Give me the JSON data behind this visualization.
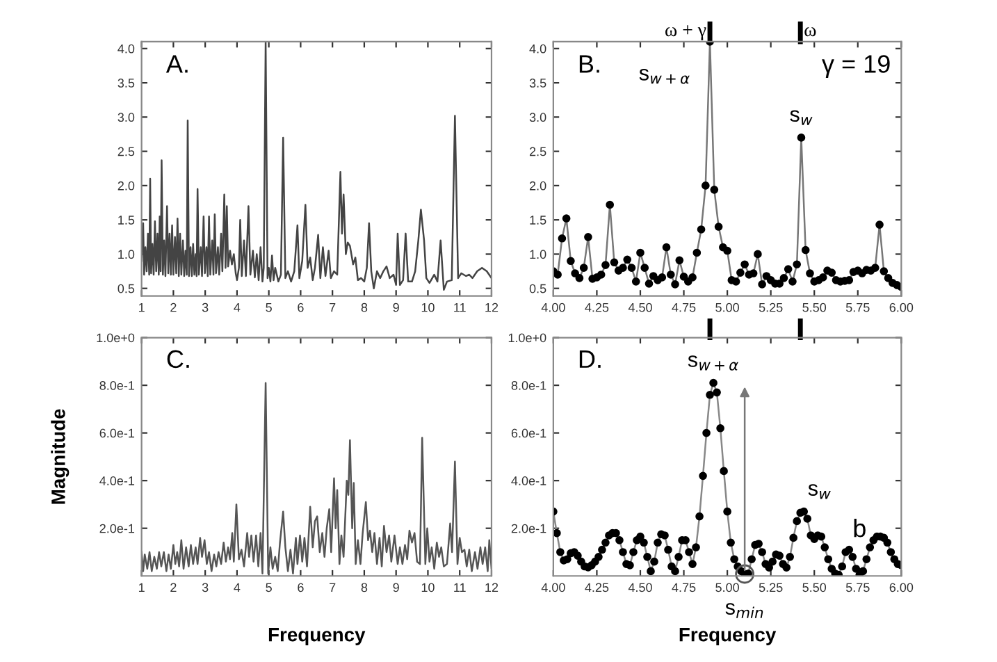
{
  "chart_data": [
    {
      "type": "line",
      "xlim": [
        1,
        12
      ],
      "ylim": [
        0.39,
        4.1
      ],
      "xticks": [
        1,
        2,
        3,
        4,
        5,
        6,
        7,
        8,
        9,
        10,
        11,
        12
      ],
      "yticks": [
        {
          "value": 0.5,
          "label": "0.5"
        },
        {
          "value": 1,
          "label": "1.0"
        },
        {
          "value": 1.5,
          "label": "1.5"
        },
        {
          "value": 2,
          "label": "2.0"
        },
        {
          "value": 2.5,
          "label": "2.5"
        },
        {
          "value": 3,
          "label": "3.0"
        },
        {
          "value": 3.5,
          "label": "3.5"
        },
        {
          "value": 4,
          "label": "4.0"
        }
      ],
      "annotations": [
        "A."
      ],
      "grid": false,
      "legend": false,
      "series": [
        {
          "color": "#444444",
          "x": [
            1.0,
            1.05,
            1.08,
            1.12,
            1.16,
            1.2,
            1.24,
            1.27,
            1.3,
            1.34,
            1.38,
            1.42,
            1.46,
            1.5,
            1.54,
            1.57,
            1.6,
            1.63,
            1.67,
            1.71,
            1.75,
            1.8,
            1.84,
            1.88,
            1.92,
            1.96,
            2.0,
            2.05,
            2.09,
            2.13,
            2.17,
            2.21,
            2.25,
            2.3,
            2.34,
            2.38,
            2.42,
            2.45,
            2.49,
            2.54,
            2.58,
            2.62,
            2.66,
            2.7,
            2.73,
            2.76,
            2.8,
            2.86,
            2.9,
            2.95,
            2.99,
            3.04,
            3.08,
            3.12,
            3.16,
            3.22,
            3.26,
            3.3,
            3.34,
            3.4,
            3.44,
            3.5,
            3.54,
            3.6,
            3.64,
            3.68,
            3.72,
            3.78,
            3.84,
            3.9,
            3.96,
            4.0,
            4.06,
            4.1,
            4.15,
            4.22,
            4.28,
            4.36,
            4.42,
            4.5,
            4.56,
            4.62,
            4.68,
            4.74,
            4.8,
            4.84,
            4.9,
            4.96,
            5.0,
            5.05,
            5.1,
            5.15,
            5.2,
            5.3,
            5.38,
            5.45,
            5.52,
            5.6,
            5.7,
            5.8,
            5.9,
            5.96,
            6.05,
            6.15,
            6.22,
            6.3,
            6.38,
            6.45,
            6.55,
            6.62,
            6.7,
            6.78,
            6.88,
            6.95,
            7.05,
            7.15,
            7.25,
            7.3,
            7.35,
            7.42,
            7.48,
            7.55,
            7.65,
            7.72,
            7.8,
            7.9,
            8.0,
            8.08,
            8.15,
            8.22,
            8.3,
            8.4,
            8.5,
            8.6,
            8.7,
            8.8,
            8.92,
            9.0,
            9.05,
            9.12,
            9.22,
            9.3,
            9.38,
            9.5,
            9.6,
            9.7,
            9.78,
            9.88,
            9.95,
            10.05,
            10.2,
            10.3,
            10.4,
            10.5,
            10.6,
            10.75,
            10.85,
            10.95,
            11.05,
            11.2,
            11.3,
            11.4,
            11.55,
            11.7,
            11.85,
            12.0
          ],
          "values": [
            0.9,
            1.45,
            0.7,
            1.1,
            0.75,
            1.3,
            0.7,
            2.1,
            0.72,
            1.15,
            0.7,
            1.48,
            0.75,
            1.3,
            0.7,
            1.55,
            0.75,
            2.37,
            0.7,
            1.2,
            0.68,
            1.7,
            0.72,
            1.3,
            0.7,
            1.42,
            0.7,
            1.25,
            0.72,
            1.52,
            0.68,
            1.3,
            0.7,
            1.2,
            0.68,
            1.05,
            0.7,
            2.95,
            0.68,
            1.1,
            0.68,
            1.15,
            0.7,
            1.0,
            0.68,
            1.95,
            0.7,
            1.1,
            0.68,
            1.55,
            0.72,
            1.1,
            0.68,
            1.55,
            0.7,
            1.2,
            0.7,
            1.58,
            0.72,
            1.1,
            0.7,
            1.3,
            0.75,
            1.87,
            0.8,
            1.7,
            0.82,
            1.05,
            0.85,
            1.0,
            0.72,
            0.62,
            0.8,
            1.5,
            0.68,
            1.2,
            0.68,
            1.7,
            0.7,
            1.05,
            0.66,
            1.0,
            0.62,
            1.1,
            0.6,
            0.8,
            4.1,
            0.65,
            0.8,
            0.6,
            0.98,
            0.62,
            0.8,
            0.6,
            0.7,
            2.7,
            0.65,
            0.75,
            0.6,
            0.75,
            1.42,
            0.65,
            0.9,
            1.72,
            0.8,
            0.95,
            0.62,
            0.8,
            1.28,
            0.65,
            1.1,
            0.68,
            1.05,
            0.65,
            0.75,
            0.7,
            2.2,
            1.3,
            1.87,
            1.0,
            1.17,
            1.12,
            0.85,
            0.95,
            0.62,
            0.65,
            0.6,
            0.8,
            1.45,
            0.75,
            0.5,
            0.75,
            0.65,
            0.75,
            0.82,
            0.65,
            0.7,
            0.55,
            1.3,
            0.55,
            0.62,
            1.3,
            0.6,
            0.6,
            0.75,
            1.2,
            1.65,
            1.2,
            0.65,
            0.58,
            0.7,
            0.6,
            1.2,
            0.48,
            0.6,
            0.62,
            3.02,
            0.65,
            0.72,
            0.68,
            0.7,
            0.65,
            0.75,
            0.8,
            0.75,
            0.65
          ]
        }
      ]
    },
    {
      "type": "line",
      "xlim": [
        4,
        6
      ],
      "ylim": [
        0.39,
        4.1
      ],
      "marker": "circle",
      "xticks": [
        {
          "value": 4,
          "label": "4.00"
        },
        {
          "value": 4.25,
          "label": "4.25"
        },
        {
          "value": 4.5,
          "label": "4.50"
        },
        {
          "value": 4.75,
          "label": "4.75"
        },
        {
          "value": 5,
          "label": "5.00"
        },
        {
          "value": 5.25,
          "label": "5.25"
        },
        {
          "value": 5.5,
          "label": "5.50"
        },
        {
          "value": 5.75,
          "label": "5.75"
        },
        {
          "value": 6,
          "label": "6.00"
        }
      ],
      "yticks": [
        {
          "value": 0.5,
          "label": "0.5"
        },
        {
          "value": 1,
          "label": "1.0"
        },
        {
          "value": 1.5,
          "label": "1.5"
        },
        {
          "value": 2,
          "label": "2.0"
        },
        {
          "value": 2.5,
          "label": "2.5"
        },
        {
          "value": 3,
          "label": "3.0"
        },
        {
          "value": 3.5,
          "label": "3.5"
        },
        {
          "value": 4,
          "label": "4.0"
        }
      ],
      "annotations": [
        "B.",
        "γ = 19",
        {
          "text": "s$_{w+α}$",
          "x": 4.9,
          "y": 4.1
        },
        {
          "text": "s$_{w}$",
          "x": 5.425,
          "y": 2.7
        }
      ],
      "ref_lines": [
        {
          "axis": "x",
          "value": 4.9,
          "label": "ω + γ"
        },
        {
          "axis": "x",
          "value": 5.42,
          "label": "ω"
        }
      ],
      "grid": false,
      "legend": false,
      "series": [
        {
          "color": "#777777",
          "x": [
            4.0,
            4.025,
            4.05,
            4.075,
            4.1,
            4.125,
            4.15,
            4.175,
            4.2,
            4.225,
            4.25,
            4.275,
            4.3,
            4.325,
            4.35,
            4.375,
            4.4,
            4.425,
            4.45,
            4.475,
            4.5,
            4.525,
            4.55,
            4.575,
            4.6,
            4.625,
            4.65,
            4.675,
            4.7,
            4.725,
            4.75,
            4.775,
            4.8,
            4.825,
            4.85,
            4.875,
            4.9,
            4.925,
            4.95,
            4.975,
            5.0,
            5.025,
            5.05,
            5.075,
            5.1,
            5.125,
            5.15,
            5.175,
            5.2,
            5.225,
            5.25,
            5.275,
            5.3,
            5.325,
            5.35,
            5.375,
            5.4,
            5.425,
            5.45,
            5.475,
            5.5,
            5.525,
            5.55,
            5.575,
            5.6,
            5.625,
            5.65,
            5.675,
            5.7,
            5.725,
            5.75,
            5.775,
            5.8,
            5.825,
            5.85,
            5.875,
            5.9,
            5.925,
            5.95,
            5.975,
            6.0
          ],
          "values": [
            0.75,
            0.7,
            1.23,
            1.52,
            0.9,
            0.72,
            0.65,
            0.8,
            1.25,
            0.64,
            0.66,
            0.7,
            0.84,
            1.72,
            0.88,
            0.76,
            0.8,
            0.92,
            0.8,
            0.6,
            1.02,
            0.8,
            0.57,
            0.68,
            0.62,
            0.66,
            1.1,
            0.7,
            0.56,
            0.91,
            0.67,
            0.6,
            0.66,
            1.02,
            1.36,
            2.0,
            4.1,
            1.94,
            1.4,
            1.1,
            1.05,
            0.62,
            0.6,
            0.73,
            0.85,
            0.7,
            0.72,
            1.0,
            0.56,
            0.68,
            0.62,
            0.57,
            0.57,
            0.65,
            0.78,
            0.6,
            0.85,
            2.7,
            1.06,
            0.72,
            0.6,
            0.62,
            0.66,
            0.76,
            0.73,
            0.62,
            0.6,
            0.61,
            0.62,
            0.74,
            0.76,
            0.72,
            0.77,
            0.76,
            0.8,
            1.43,
            0.75,
            0.65,
            0.58,
            0.55,
            0.52
          ]
        }
      ]
    },
    {
      "type": "line",
      "xlim": [
        1,
        12
      ],
      "ylim": [
        0,
        1
      ],
      "xticks": [
        1,
        2,
        3,
        4,
        5,
        6,
        7,
        8,
        9,
        10,
        11,
        12
      ],
      "yticks": [
        {
          "value": 0.2,
          "label": "2.0e-1"
        },
        {
          "value": 0.4,
          "label": "4.0e-1"
        },
        {
          "value": 0.6,
          "label": "6.0e-1"
        },
        {
          "value": 0.8,
          "label": "8.0e-1"
        },
        {
          "value": 1,
          "label": "1.0e+0"
        }
      ],
      "xlabel": "Frequency",
      "ylabel": "Magnitude",
      "annotations": [
        "C."
      ],
      "grid": false,
      "legend": false,
      "series": [
        {
          "color": "#555555",
          "x": [
            1.0,
            1.05,
            1.1,
            1.18,
            1.25,
            1.32,
            1.4,
            1.48,
            1.55,
            1.62,
            1.7,
            1.78,
            1.85,
            1.92,
            2.0,
            2.06,
            2.12,
            2.18,
            2.25,
            2.32,
            2.4,
            2.48,
            2.55,
            2.62,
            2.7,
            2.76,
            2.84,
            2.9,
            2.98,
            3.05,
            3.12,
            3.2,
            3.28,
            3.35,
            3.42,
            3.5,
            3.58,
            3.65,
            3.72,
            3.78,
            3.85,
            3.9,
            3.98,
            4.06,
            4.14,
            4.22,
            4.32,
            4.38,
            4.45,
            4.52,
            4.6,
            4.67,
            4.74,
            4.8,
            4.9,
            4.98,
            5.05,
            5.12,
            5.2,
            5.28,
            5.35,
            5.45,
            5.52,
            5.6,
            5.68,
            5.76,
            5.85,
            5.9,
            5.98,
            6.05,
            6.12,
            6.2,
            6.3,
            6.38,
            6.45,
            6.52,
            6.6,
            6.68,
            6.75,
            6.82,
            6.9,
            6.96,
            7.05,
            7.1,
            7.15,
            7.22,
            7.28,
            7.35,
            7.45,
            7.5,
            7.55,
            7.62,
            7.67,
            7.73,
            7.8,
            7.88,
            7.95,
            8.05,
            8.12,
            8.18,
            8.25,
            8.32,
            8.4,
            8.48,
            8.55,
            8.62,
            8.7,
            8.78,
            8.85,
            8.95,
            9.05,
            9.12,
            9.2,
            9.28,
            9.35,
            9.42,
            9.5,
            9.58,
            9.66,
            9.75,
            9.82,
            9.92,
            9.98,
            10.05,
            10.12,
            10.2,
            10.28,
            10.35,
            10.42,
            10.5,
            10.6,
            10.7,
            10.76,
            10.85,
            10.93,
            11.0,
            11.07,
            11.15,
            11.22,
            11.3,
            11.38,
            11.48,
            11.56,
            11.65,
            11.72,
            11.8,
            11.88,
            11.93,
            12.0
          ],
          "values": [
            0.1,
            0.02,
            0.09,
            0.03,
            0.1,
            0.02,
            0.08,
            0.03,
            0.1,
            0.04,
            0.1,
            0.02,
            0.09,
            0.03,
            0.13,
            0.05,
            0.1,
            0.04,
            0.15,
            0.03,
            0.12,
            0.04,
            0.13,
            0.05,
            0.12,
            0.05,
            0.16,
            0.08,
            0.15,
            0.05,
            0.1,
            0.02,
            0.09,
            0.04,
            0.1,
            0.05,
            0.14,
            0.06,
            0.12,
            0.07,
            0.18,
            0.06,
            0.3,
            0.07,
            0.11,
            0.04,
            0.18,
            0.08,
            0.17,
            0.06,
            0.17,
            0.04,
            0.18,
            0.01,
            0.81,
            0.01,
            0.12,
            0.03,
            0.08,
            0.02,
            0.14,
            0.27,
            0.12,
            0.02,
            0.11,
            0.01,
            0.16,
            0.05,
            0.17,
            0.06,
            0.16,
            0.04,
            0.29,
            0.12,
            0.23,
            0.25,
            0.1,
            0.18,
            0.08,
            0.2,
            0.28,
            0.1,
            0.41,
            0.2,
            0.36,
            0.05,
            0.17,
            0.08,
            0.4,
            0.34,
            0.57,
            0.2,
            0.39,
            0.05,
            0.15,
            0.05,
            0.18,
            0.31,
            0.15,
            0.19,
            0.1,
            0.18,
            0.05,
            0.16,
            0.04,
            0.21,
            0.1,
            0.17,
            0.06,
            0.17,
            0.05,
            0.12,
            0.05,
            0.13,
            0.07,
            0.19,
            0.14,
            0.18,
            0.06,
            0.05,
            0.58,
            0.05,
            0.2,
            0.06,
            0.12,
            0.03,
            0.14,
            0.08,
            0.12,
            0.04,
            0.05,
            0.22,
            0.1,
            0.48,
            0.05,
            0.16,
            0.1,
            0.11,
            0.04,
            0.11,
            0.02,
            0.1,
            0.03,
            0.12,
            0.05,
            0.12,
            0.02,
            0.15,
            0.03
          ]
        }
      ]
    },
    {
      "type": "line",
      "xlim": [
        4,
        6
      ],
      "ylim": [
        0,
        1
      ],
      "marker": "circle",
      "xticks": [
        {
          "value": 4,
          "label": "4.00"
        },
        {
          "value": 4.25,
          "label": "4.25"
        },
        {
          "value": 4.5,
          "label": "4.50"
        },
        {
          "value": 4.75,
          "label": "4.75"
        },
        {
          "value": 5,
          "label": "5.00"
        },
        {
          "value": 5.25,
          "label": "5.25"
        },
        {
          "value": 5.5,
          "label": "5.50"
        },
        {
          "value": 5.75,
          "label": "5.75"
        },
        {
          "value": 6,
          "label": "6.00"
        }
      ],
      "yticks": [
        {
          "value": 0.2,
          "label": "2.0e-1"
        },
        {
          "value": 0.4,
          "label": "4.0e-1"
        },
        {
          "value": 0.6,
          "label": "6.0e-1"
        },
        {
          "value": 0.8,
          "label": "8.0e-1"
        },
        {
          "value": 1,
          "label": "1.0e+0"
        }
      ],
      "xlabel": "Frequency",
      "annotations": [
        "D.",
        {
          "text": "s$_{w+α}$",
          "x": 4.92,
          "y": 0.81
        },
        {
          "text": "s$_{w}$",
          "x": 5.44,
          "y": 0.27
        },
        {
          "text": "s$_{min}$",
          "x": 5.1,
          "y": 0.008
        },
        "b"
      ],
      "grid": false,
      "legend": false,
      "series": [
        {
          "color": "#888888",
          "x": [
            4.0,
            4.02,
            4.04,
            4.06,
            4.08,
            4.1,
            4.12,
            4.14,
            4.16,
            4.18,
            4.2,
            4.22,
            4.24,
            4.26,
            4.28,
            4.3,
            4.32,
            4.34,
            4.36,
            4.38,
            4.4,
            4.42,
            4.44,
            4.46,
            4.48,
            4.5,
            4.52,
            4.54,
            4.56,
            4.58,
            4.6,
            4.62,
            4.64,
            4.66,
            4.68,
            4.7,
            4.72,
            4.74,
            4.76,
            4.78,
            4.8,
            4.82,
            4.84,
            4.86,
            4.88,
            4.9,
            4.92,
            4.94,
            4.96,
            4.98,
            5.0,
            5.02,
            5.04,
            5.06,
            5.08,
            5.1,
            5.12,
            5.14,
            5.16,
            5.18,
            5.2,
            5.22,
            5.24,
            5.26,
            5.28,
            5.3,
            5.32,
            5.34,
            5.36,
            5.38,
            5.4,
            5.42,
            5.44,
            5.46,
            5.48,
            5.5,
            5.52,
            5.54,
            5.56,
            5.58,
            5.6,
            5.62,
            5.64,
            5.66,
            5.68,
            5.7,
            5.72,
            5.74,
            5.76,
            5.78,
            5.8,
            5.82,
            5.84,
            5.86,
            5.88,
            5.9,
            5.92,
            5.94,
            5.96,
            5.98,
            6.0
          ],
          "values": [
            0.27,
            0.18,
            0.1,
            0.065,
            0.07,
            0.095,
            0.1,
            0.085,
            0.06,
            0.04,
            0.036,
            0.045,
            0.06,
            0.08,
            0.11,
            0.14,
            0.17,
            0.18,
            0.18,
            0.15,
            0.1,
            0.05,
            0.045,
            0.1,
            0.15,
            0.165,
            0.14,
            0.08,
            0.02,
            0.06,
            0.14,
            0.175,
            0.17,
            0.11,
            0.04,
            0.02,
            0.08,
            0.15,
            0.15,
            0.1,
            0.05,
            0.12,
            0.25,
            0.42,
            0.6,
            0.76,
            0.81,
            0.77,
            0.62,
            0.44,
            0.27,
            0.14,
            0.07,
            0.04,
            0.02,
            0.008,
            0.01,
            0.07,
            0.13,
            0.135,
            0.1,
            0.05,
            0.035,
            0.06,
            0.09,
            0.085,
            0.05,
            0.035,
            0.08,
            0.16,
            0.23,
            0.265,
            0.27,
            0.24,
            0.17,
            0.155,
            0.17,
            0.165,
            0.12,
            0.07,
            0.03,
            0.01,
            0.005,
            0.04,
            0.1,
            0.11,
            0.08,
            0.03,
            0.005,
            0.02,
            0.07,
            0.12,
            0.15,
            0.165,
            0.165,
            0.16,
            0.14,
            0.1,
            0.07,
            0.05,
            0.045
          ]
        }
      ]
    }
  ]
}
